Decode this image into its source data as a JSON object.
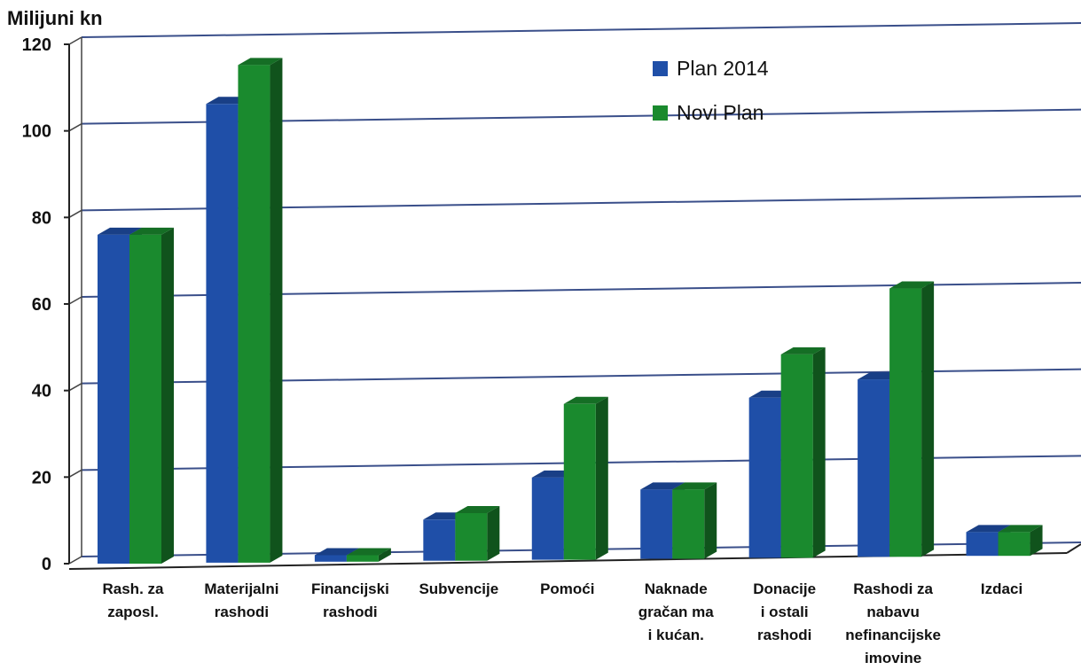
{
  "chart_data": {
    "type": "bar",
    "title": "",
    "ylabel": "Milijuni kn",
    "xlabel": "",
    "ylim": [
      0,
      120
    ],
    "yticks": [
      "0",
      "20",
      "40",
      "60",
      "80",
      "100",
      "120"
    ],
    "grid": true,
    "legend_position": "top-right",
    "categories": [
      "Rash. za\nzaposl.",
      "Materijalni\nrashodi",
      "Financijski\nrashodi",
      "Subvencije",
      "Pomoći",
      "Naknade\ngračan ma\ni kućan.",
      "Donacije\ni ostali\nrashodi",
      "Rashodi za\nnabavu\nnefinancijske\nimovine",
      "Izdaci"
    ],
    "series": [
      {
        "name": "Plan 2014",
        "color": "#1f4fa8",
        "values": [
          76,
          106,
          1.5,
          9.5,
          19,
          16,
          37,
          41,
          5.5
        ]
      },
      {
        "name": "Novi Plan",
        "color": "#1a8a2e",
        "values": [
          76,
          115,
          1.5,
          11,
          36,
          16,
          47,
          62,
          5.5
        ]
      }
    ]
  }
}
